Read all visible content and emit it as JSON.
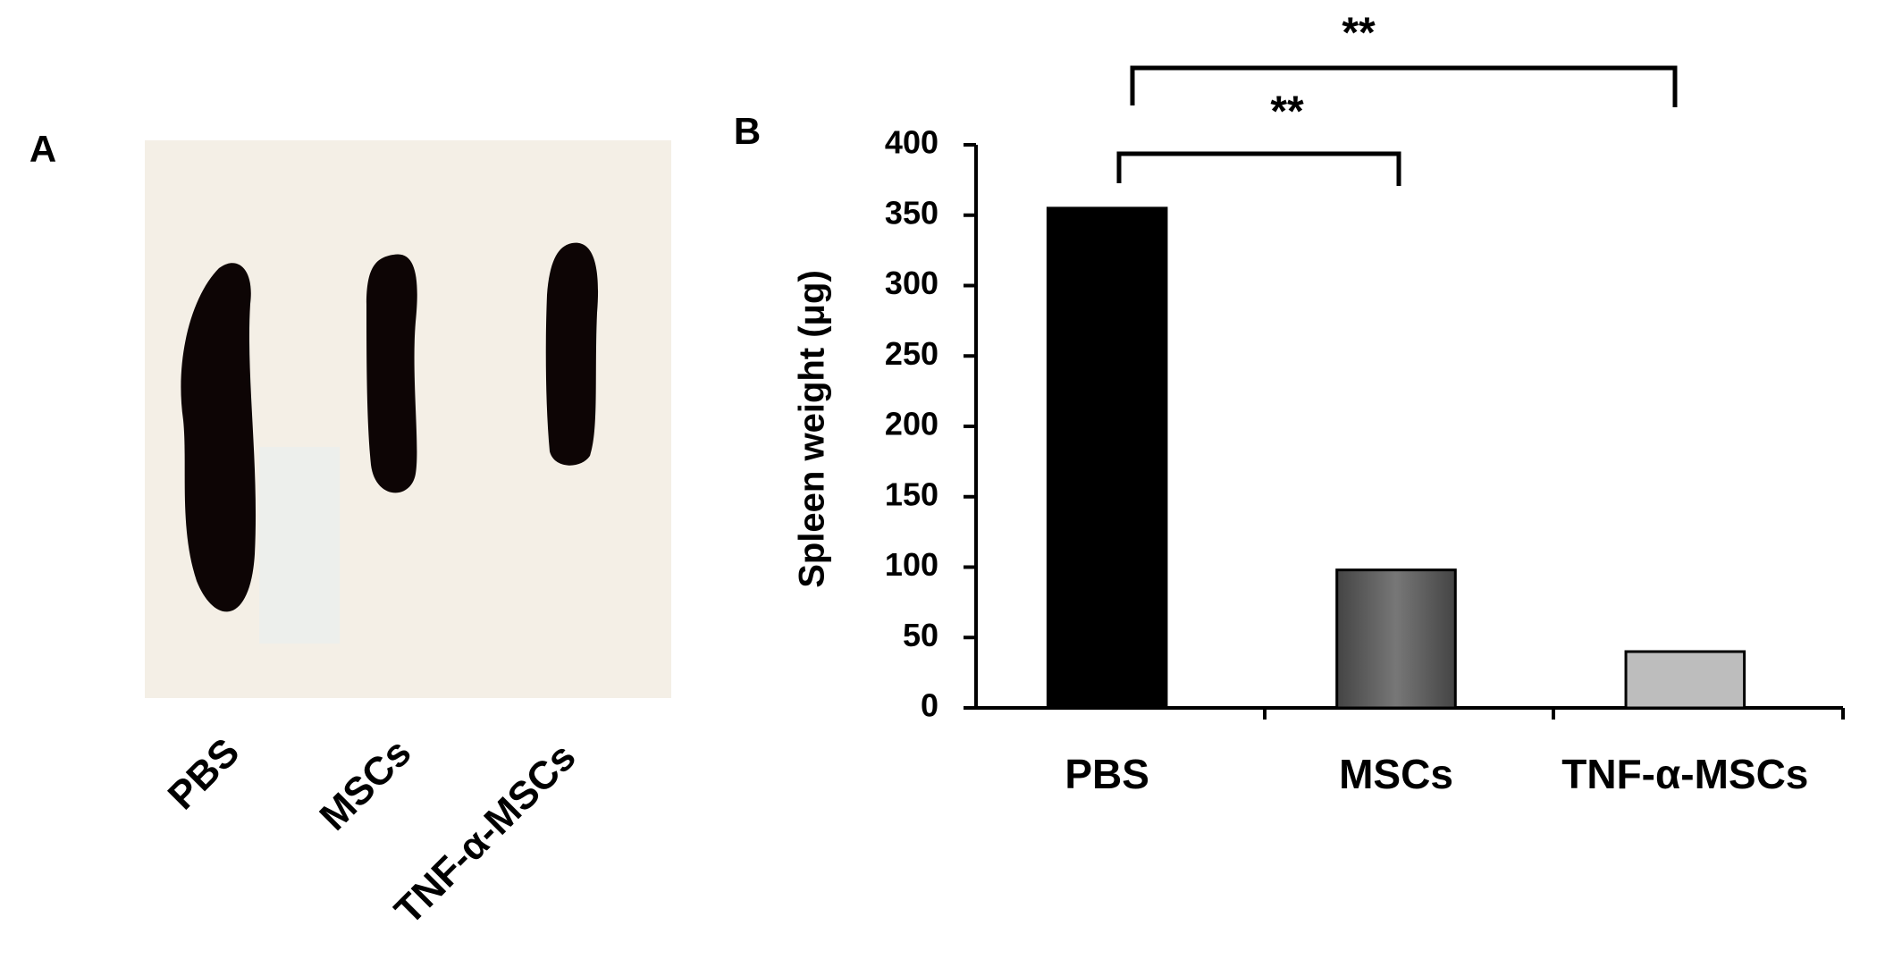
{
  "panel_a": {
    "label": "A",
    "samples": [
      "PBS",
      "MSCs",
      "TNF-α-MSCs"
    ]
  },
  "chart_data": {
    "type": "bar",
    "panel_label": "B",
    "y_label": "Spleen weight (μg)",
    "categories": [
      "PBS",
      "MSCs",
      "TNF-α-MSCs"
    ],
    "values": [
      355,
      98,
      40
    ],
    "colors": [
      "#000000",
      "#555555",
      "#bdbdbd"
    ],
    "ylim": [
      0,
      400
    ],
    "yticks": [
      0,
      50,
      100,
      150,
      200,
      250,
      300,
      350,
      400
    ],
    "annotations": [
      "**",
      "**"
    ]
  }
}
